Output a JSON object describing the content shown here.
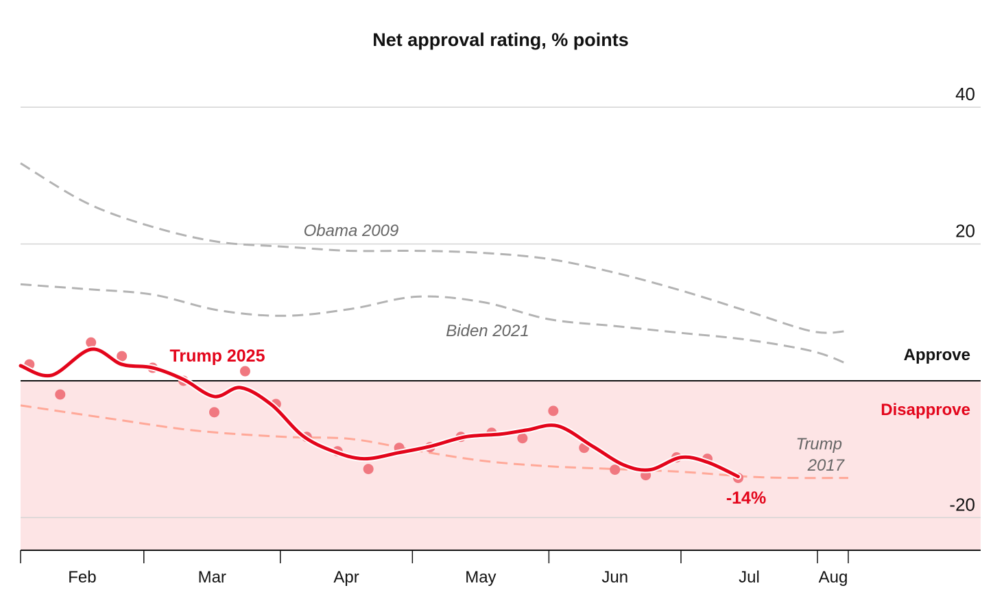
{
  "chart_data": {
    "type": "line",
    "title": "Net approval rating, % points",
    "xlabel": "",
    "ylabel": "",
    "x_unit": "days since Feb 1",
    "xlim": [
      0,
      218
    ],
    "ylim": [
      -25,
      42
    ],
    "y_ticks": [
      40,
      20,
      -20
    ],
    "x_ticks": [
      {
        "day": 0,
        "label": "Feb"
      },
      {
        "day": 28,
        "label": "Mar"
      },
      {
        "day": 59,
        "label": "Apr"
      },
      {
        "day": 89,
        "label": "May"
      },
      {
        "day": 120,
        "label": "Jun"
      },
      {
        "day": 150,
        "label": "Jul"
      },
      {
        "day": 181,
        "label": "Aug"
      },
      {
        "day": 188,
        "label": ""
      }
    ],
    "zones": {
      "approve": {
        "label": "Approve",
        "color": "#111111"
      },
      "disapprove": {
        "label": "Disapprove",
        "color": "#e3051b",
        "fill": "#fde4e5"
      }
    },
    "grid": true,
    "series": [
      {
        "name": "Obama 2009",
        "style": "dashed",
        "color": "#b3b3b3",
        "x": [
          0,
          15,
          30,
          45,
          60,
          75,
          90,
          105,
          120,
          135,
          150,
          165,
          180,
          188
        ],
        "y": [
          31.8,
          26,
          22.5,
          20.3,
          19.6,
          19,
          19,
          18.7,
          17.8,
          15.8,
          13.2,
          10.2,
          7.2,
          7.3
        ]
      },
      {
        "name": "Biden 2021",
        "style": "dashed",
        "color": "#b3b3b3",
        "x": [
          0,
          15,
          30,
          45,
          60,
          75,
          90,
          105,
          120,
          135,
          150,
          165,
          180,
          188
        ],
        "y": [
          14.1,
          13.4,
          12.6,
          10.3,
          9.5,
          10.5,
          12.3,
          11.5,
          9.0,
          8.0,
          7.0,
          6.0,
          4.3,
          2.4
        ]
      },
      {
        "name": "Trump 2017",
        "style": "dashed",
        "color": "#ffa898",
        "x": [
          0,
          20,
          40,
          60,
          75,
          90,
          105,
          120,
          135,
          150,
          165,
          175,
          188
        ],
        "y": [
          -3.6,
          -5.5,
          -7.3,
          -8.2,
          -8.5,
          -10.2,
          -11.7,
          -12.5,
          -12.9,
          -13.3,
          -14.0,
          -14.2,
          -14.2
        ]
      },
      {
        "name": "Trump 2025",
        "style": "solid",
        "color": "#e3051b",
        "x": [
          0,
          7,
          16,
          23,
          30,
          37,
          44,
          50,
          57,
          64,
          71,
          78,
          86,
          93,
          101,
          109,
          115,
          122,
          130,
          137,
          143,
          150,
          156,
          163
        ],
        "y": [
          2.2,
          0.8,
          4.6,
          2.4,
          1.9,
          0.2,
          -2.3,
          -1.0,
          -3.5,
          -8.0,
          -10.3,
          -11.4,
          -10.5,
          -9.6,
          -8.2,
          -7.8,
          -7.2,
          -6.6,
          -9.6,
          -12.3,
          -13.0,
          -11.2,
          -11.9,
          -14.0
        ]
      }
    ],
    "scatter": {
      "name": "Trump 2025 polls",
      "color": "#f07880",
      "x": [
        2,
        9,
        16,
        23,
        30,
        37,
        44,
        51,
        58,
        65,
        72,
        79,
        86,
        93,
        100,
        107,
        114,
        121,
        128,
        135,
        142,
        149,
        156,
        163
      ],
      "y": [
        2.4,
        -2.0,
        5.6,
        3.6,
        1.9,
        0.0,
        -4.6,
        1.4,
        -3.4,
        -8.2,
        -10.3,
        -12.9,
        -9.8,
        -9.7,
        -8.2,
        -7.6,
        -8.4,
        -4.4,
        -9.8,
        -13.0,
        -13.8,
        -11.2,
        -11.4,
        -14.2
      ]
    },
    "annotations": [
      {
        "text": "Obama 2009",
        "series": "Obama 2009"
      },
      {
        "text": "Biden 2021",
        "series": "Biden 2021"
      },
      {
        "text": "Trump 2025",
        "series": "Trump 2025"
      },
      {
        "text": "Trump",
        "series": "Trump 2017"
      },
      {
        "text": "2017",
        "series": "Trump 2017"
      },
      {
        "text": "-14%",
        "series": "Trump 2025",
        "value": -14
      }
    ]
  }
}
